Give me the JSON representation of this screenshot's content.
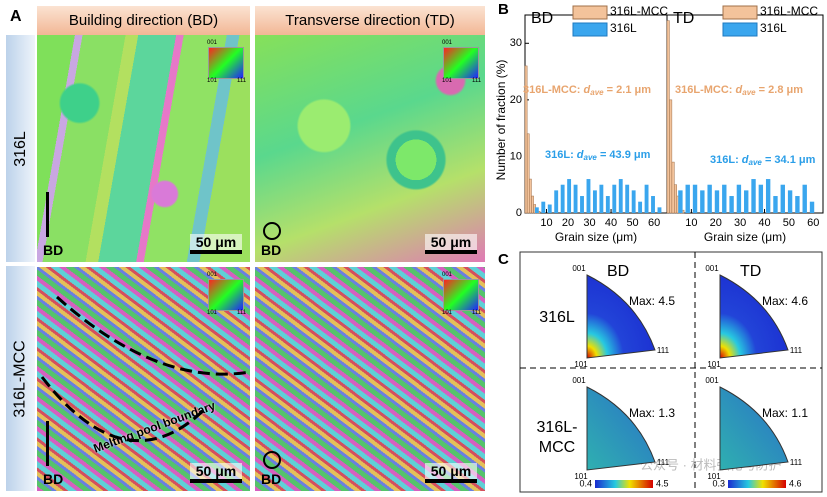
{
  "figure": {
    "panel_a": {
      "label": "A",
      "columns": [
        "Building direction (BD)",
        "Transverse direction (TD)"
      ],
      "rows": [
        "316L",
        "316L-MCC"
      ],
      "scale_bar": "50 μm",
      "direction": "BD",
      "annotation": "Melting pool boundary",
      "ipf_key": [
        "001",
        "101",
        "111"
      ]
    },
    "panel_b": {
      "label": "B"
    },
    "panel_c": {
      "label": "C",
      "columns": [
        "BD",
        "TD"
      ],
      "rows": [
        [
          "316L"
        ],
        [
          "316L-",
          "MCC"
        ]
      ],
      "corners": [
        "001",
        "101",
        "111"
      ],
      "cells": [
        {
          "max": "Max: 4.5"
        },
        {
          "max": "Max: 4.6"
        },
        {
          "max": "Max: 1.3",
          "scale": [
            "0.4",
            "4.5"
          ]
        },
        {
          "max": "Max: 1.1",
          "scale": [
            "0.3",
            "4.6"
          ]
        }
      ]
    },
    "watermark": "公众号 · 材料强化与防护"
  },
  "chart_data": [
    {
      "type": "histogram",
      "title": "BD",
      "xlabel": "Grain size (μm)",
      "ylabel": "Number of fraction (%)",
      "xlim": [
        0,
        66
      ],
      "xticks": [
        10,
        20,
        30,
        40,
        50,
        60
      ],
      "ylim": [
        0,
        35
      ],
      "yticks": [
        0,
        10,
        20,
        30
      ],
      "series": [
        {
          "name": "316L-MCC",
          "color": "#f3c39b",
          "bins": [
            0,
            1,
            2,
            3,
            4,
            5,
            6,
            7
          ],
          "values": [
            26,
            14,
            6,
            3,
            1.5,
            0.8,
            0.3
          ]
        },
        {
          "name": "316L",
          "color": "#3aa6ee",
          "bins": [
            4,
            7,
            10,
            13,
            16,
            19,
            22,
            25,
            28,
            31,
            34,
            37,
            40,
            43,
            46,
            49,
            52,
            55,
            58,
            61,
            64
          ],
          "values": [
            1,
            2,
            1.5,
            4,
            5,
            6,
            5,
            3,
            6,
            4,
            5,
            3,
            5,
            6,
            5,
            4,
            2,
            5,
            3,
            1
          ]
        }
      ],
      "annotations": [
        {
          "label": "316L-MCC: ",
          "symbol": "d",
          "subscript": "ave",
          "text": " = 2.1 μm",
          "color": "#e8a56f"
        },
        {
          "label": "316L: ",
          "symbol": "d",
          "subscript": "ave",
          "text": " = 43.9 μm",
          "color": "#2a9ee8"
        }
      ]
    },
    {
      "type": "histogram",
      "title": "TD",
      "xlabel": "Grain size (μm)",
      "xlim": [
        0,
        64
      ],
      "xticks": [
        10,
        20,
        30,
        40,
        50,
        60
      ],
      "ylim": [
        0,
        35
      ],
      "series": [
        {
          "name": "316L-MCC",
          "color": "#f3c39b",
          "bins": [
            0,
            1,
            2,
            3,
            4,
            5,
            6,
            7
          ],
          "values": [
            34,
            20,
            9,
            5,
            3,
            1.5,
            0.5
          ]
        },
        {
          "name": "316L",
          "color": "#3aa6ee",
          "bins": [
            4,
            7,
            10,
            13,
            16,
            19,
            22,
            25,
            28,
            31,
            34,
            37,
            40,
            43,
            46,
            49,
            52,
            55,
            58,
            61
          ],
          "values": [
            4,
            5,
            5,
            4,
            5,
            4,
            5,
            3,
            5,
            4,
            6,
            5,
            6,
            3,
            5,
            4,
            3,
            5,
            2
          ]
        }
      ],
      "annotations": [
        {
          "label": "316L-MCC: ",
          "symbol": "d",
          "subscript": "ave",
          "text": " = 2.8 μm",
          "color": "#e8a56f"
        },
        {
          "label": "316L: ",
          "symbol": "d",
          "subscript": "ave",
          "text": " = 34.1 μm",
          "color": "#2a9ee8"
        }
      ]
    }
  ]
}
